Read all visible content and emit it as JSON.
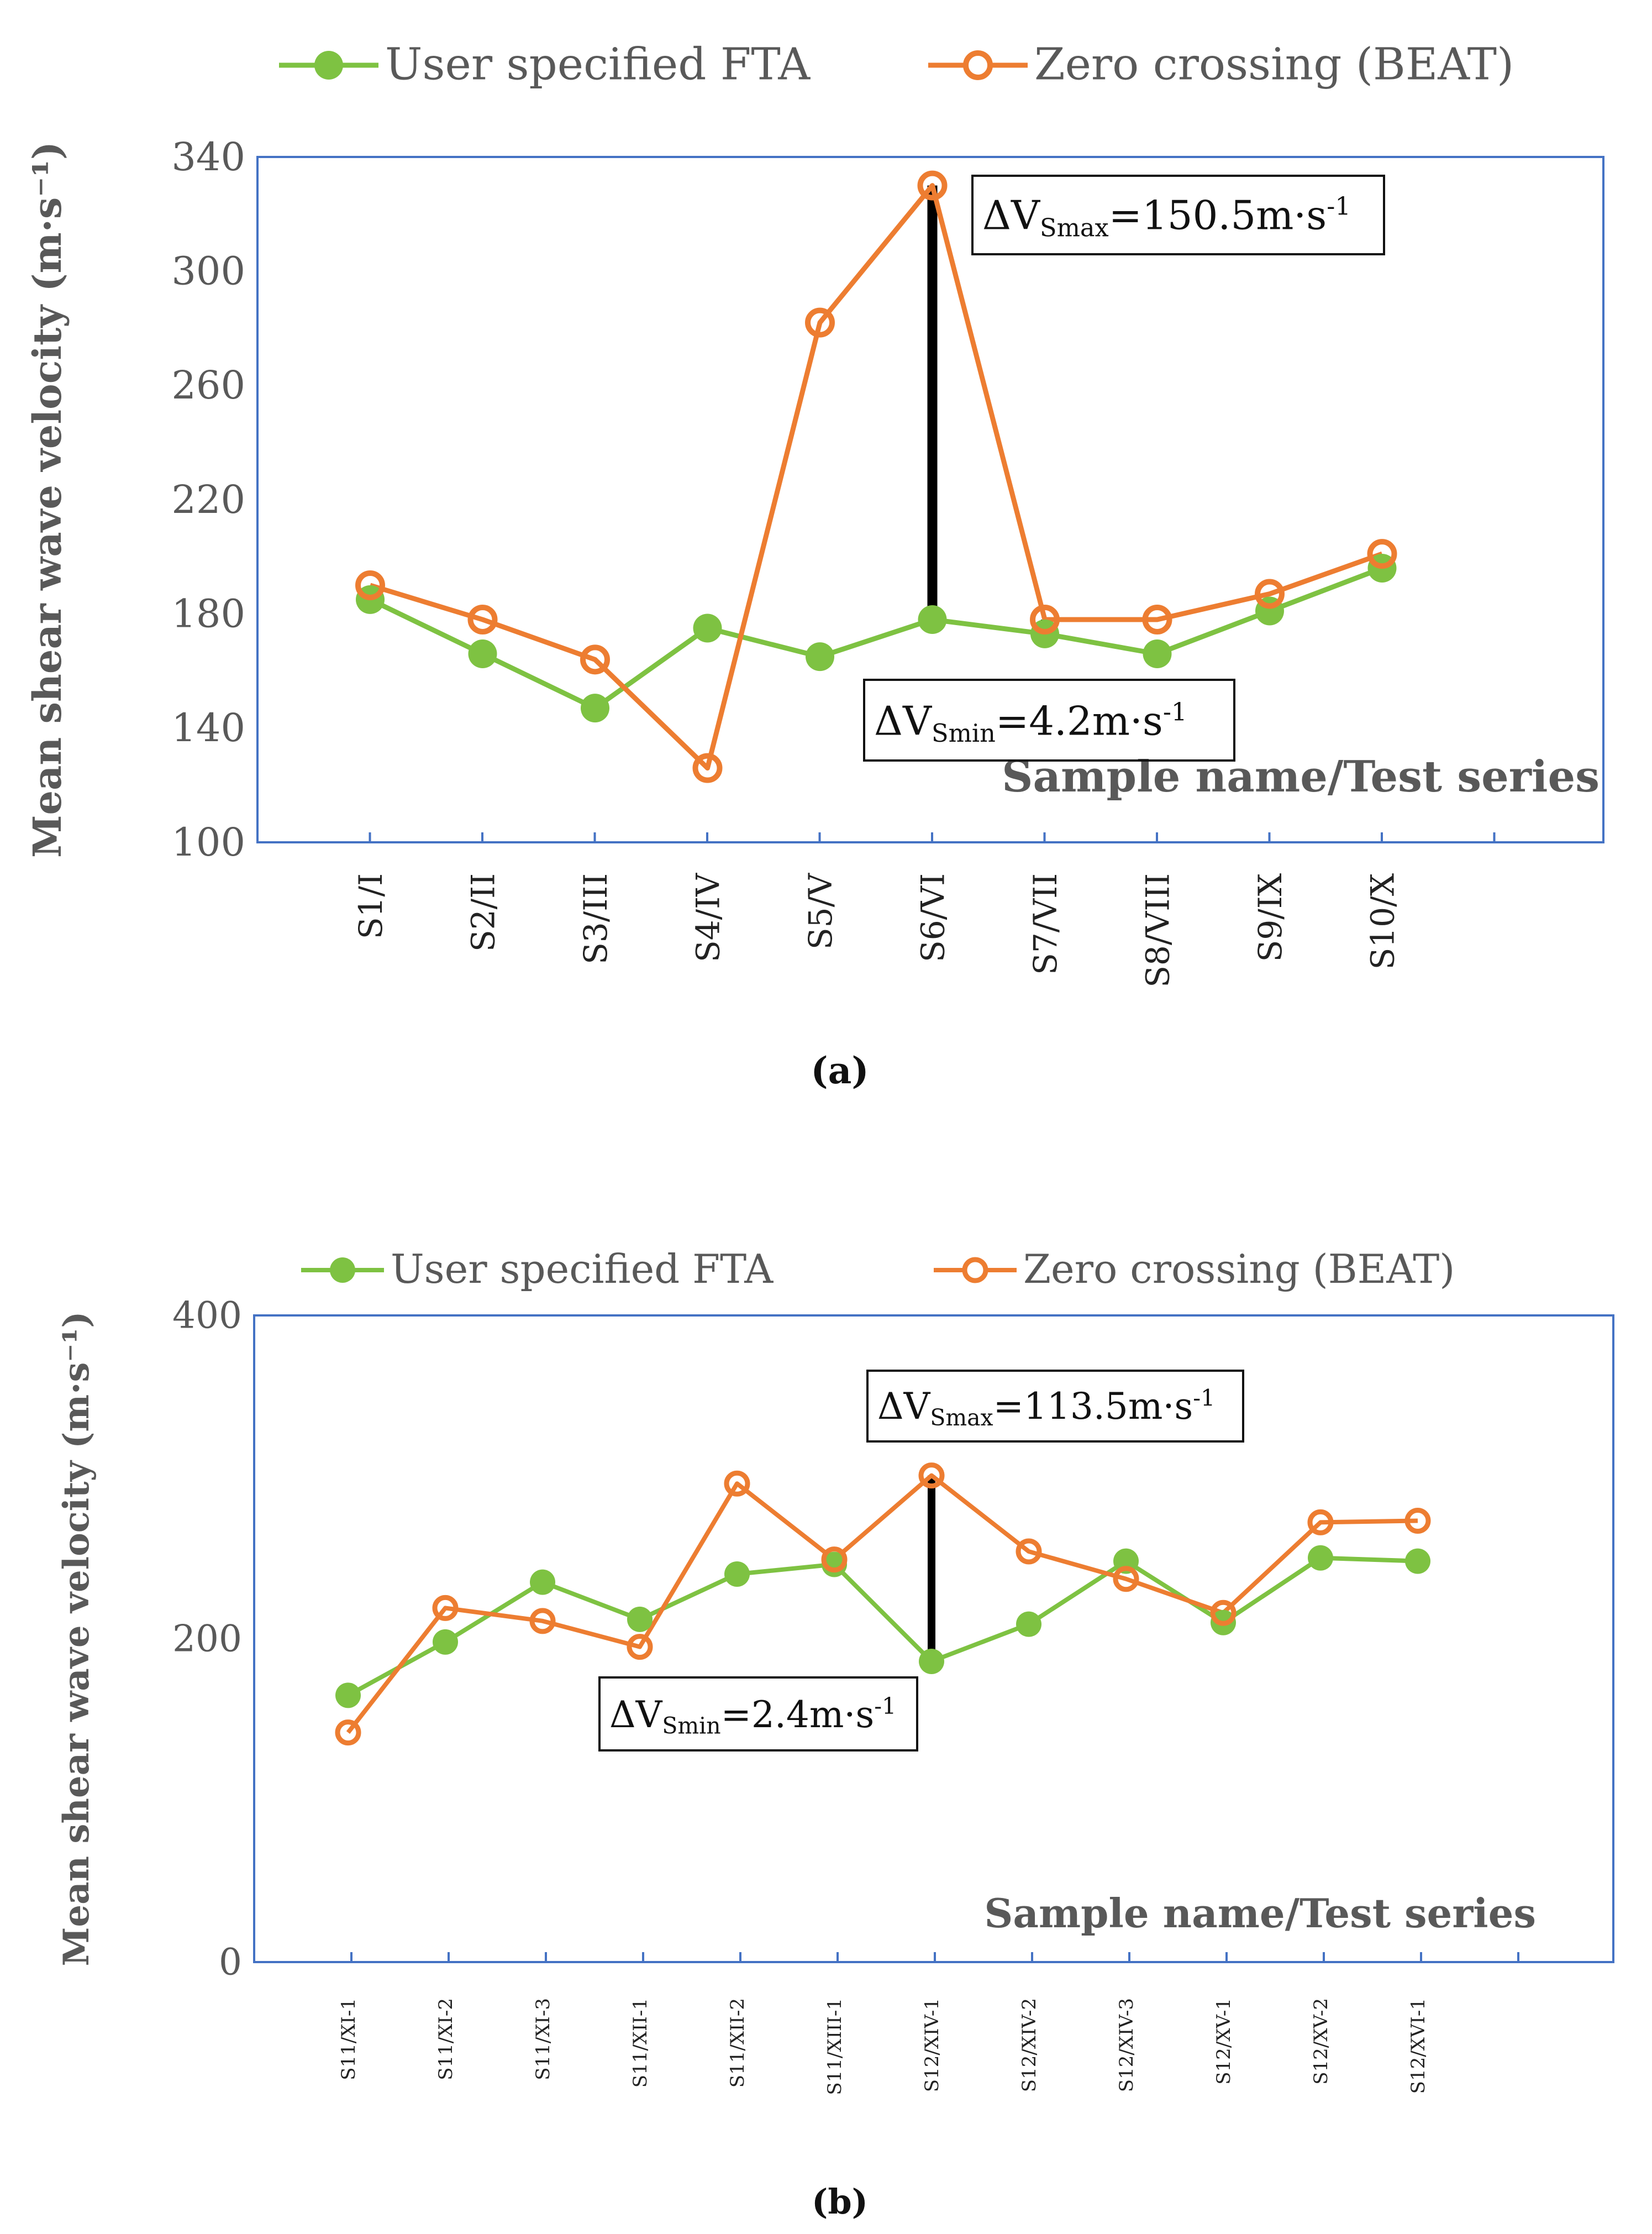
{
  "chart_data": [
    {
      "id": "a",
      "type": "line",
      "caption": "(a)",
      "legend": [
        "User specified FTA",
        "Zero crossing (BEAT)"
      ],
      "ylabel": "Mean shear wave velocity (m·s⁻¹)",
      "xlabel_annotation": "Sample name/Test series",
      "ylim": [
        100,
        340
      ],
      "yticks": [
        100,
        140,
        180,
        220,
        260,
        300,
        340
      ],
      "categories": [
        "S1/I",
        "S2/II",
        "S3/III",
        "S4/IV",
        "S5/V",
        "S6/VI",
        "S7/VII",
        "S8/VIII",
        "S9/IX",
        "S10/X"
      ],
      "series": [
        {
          "name": "User specified FTA",
          "color": "#7ec242",
          "marker": "filled",
          "values": [
            185,
            166,
            147,
            175,
            165,
            178,
            173,
            166,
            181,
            196
          ]
        },
        {
          "name": "Zero crossing (BEAT)",
          "color": "#ed7d31",
          "marker": "hollow",
          "values": [
            190,
            178,
            164,
            126,
            282,
            330,
            178,
            178,
            187,
            201
          ]
        }
      ],
      "annotations": {
        "max": {
          "label": "ΔV",
          "sub": "Smax",
          "rest": "=150.5m·s",
          "sup": "-1",
          "category": "S6/VI"
        },
        "min": {
          "label": "ΔV",
          "sub": "Smin",
          "rest": "=4.2m·s",
          "sup": "-1",
          "category": "S7/VII"
        }
      }
    },
    {
      "id": "b",
      "type": "line",
      "caption": "(b)",
      "legend": [
        "User specified FTA",
        "Zero crossing (BEAT)"
      ],
      "ylabel": "Mean shear wave velocity (m·s⁻¹)",
      "xlabel_annotation": "Sample name/Test series",
      "ylim": [
        0,
        400
      ],
      "yticks": [
        0,
        200,
        400
      ],
      "categories": [
        "S11/XI-1",
        "S11/XI-2",
        "S11/XI-3",
        "S11/XII-1",
        "S11/XII-2",
        "S11/XIII-1",
        "S12/XIV-1",
        "S12/XIV-2",
        "S12/XIV-3",
        "S12/XV-1",
        "S12/XV-2",
        "S12/XVI-1"
      ],
      "series": [
        {
          "name": "User specified FTA",
          "color": "#7ec242",
          "marker": "filled",
          "values": [
            165,
            198,
            235,
            212,
            240,
            246,
            186,
            209,
            248,
            210,
            250,
            248
          ]
        },
        {
          "name": "Zero crossing (BEAT)",
          "color": "#ed7d31",
          "marker": "hollow",
          "values": [
            142,
            219,
            211,
            195,
            296,
            249,
            301,
            254,
            237,
            216,
            272,
            273
          ]
        }
      ],
      "annotations": {
        "max": {
          "label": "ΔV",
          "sub": "Smax",
          "rest": "=113.5m·s",
          "sup": "-1",
          "category": "S12/XIV-1"
        },
        "min": {
          "label": "ΔV",
          "sub": "Smin",
          "rest": "=2.4m·s",
          "sup": "-1",
          "category": "S11/XIII-1"
        }
      }
    }
  ]
}
